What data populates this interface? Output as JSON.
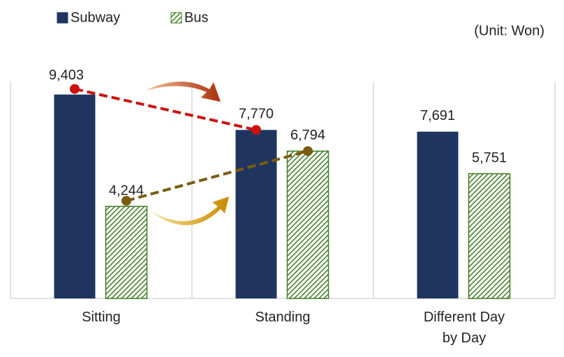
{
  "chart_data": {
    "type": "bar",
    "note": "(Unit: Won)",
    "categories": [
      "Sitting",
      "Standing",
      "Different Day by Day"
    ],
    "series": [
      {
        "name": "Subway",
        "color": "#1f3560",
        "hatch": false,
        "values": [
          9403,
          7770,
          7691
        ],
        "value_labels": [
          "9,403",
          "7,770",
          "7,691"
        ],
        "trend_color": "#cc1010"
      },
      {
        "name": "Bus",
        "color": "#3f7a22",
        "hatch": true,
        "values": [
          4244,
          6794,
          5751
        ],
        "value_labels": [
          "4,244",
          "6,794",
          "5,751"
        ],
        "trend_color": "#7a5c10"
      }
    ],
    "ylim": [
      0,
      10000
    ],
    "legend": "top-left"
  }
}
